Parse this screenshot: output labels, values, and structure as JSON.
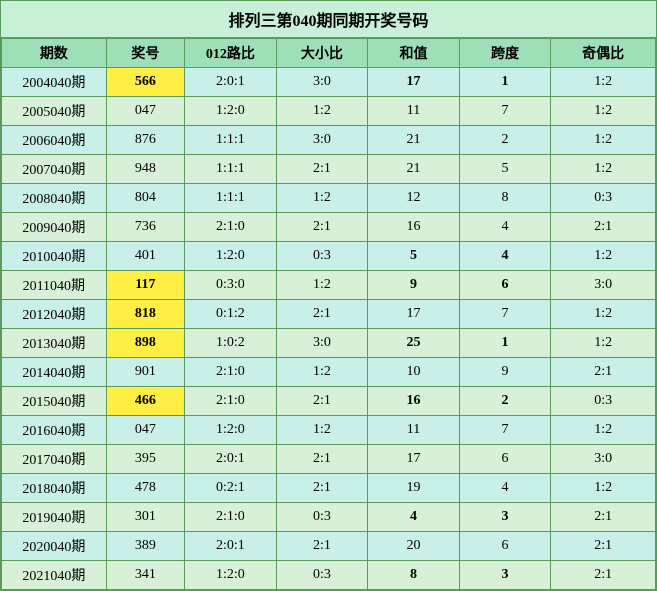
{
  "title": "排列三第040期同期开奖号码",
  "columns": [
    "期数",
    "奖号",
    "012路比",
    "大小比",
    "和值",
    "跨度",
    "奇偶比"
  ],
  "col_widths": [
    "16%",
    "12%",
    "14%",
    "14%",
    "14%",
    "14%",
    "16%"
  ],
  "colors": {
    "border": "#5a9a5a",
    "header_bg": "#9de0b8",
    "row_alt_bg": "#c8f0e8",
    "row_reg_bg": "#d8f0d8",
    "highlight_bg": "#ffee44",
    "title_bg": "#c8f0d8"
  },
  "rows": [
    {
      "period": "2004040期",
      "num": "566",
      "ratio012": "2:0:1",
      "daxiao": "3:0",
      "sum": "17",
      "span": "1",
      "oddeven": "1:2",
      "hl": true,
      "alt": true,
      "bold_cols": [
        4,
        5
      ]
    },
    {
      "period": "2005040期",
      "num": "047",
      "ratio012": "1:2:0",
      "daxiao": "1:2",
      "sum": "11",
      "span": "7",
      "oddeven": "1:2",
      "hl": false,
      "alt": false,
      "bold_cols": []
    },
    {
      "period": "2006040期",
      "num": "876",
      "ratio012": "1:1:1",
      "daxiao": "3:0",
      "sum": "21",
      "span": "2",
      "oddeven": "1:2",
      "hl": false,
      "alt": true,
      "bold_cols": []
    },
    {
      "period": "2007040期",
      "num": "948",
      "ratio012": "1:1:1",
      "daxiao": "2:1",
      "sum": "21",
      "span": "5",
      "oddeven": "1:2",
      "hl": false,
      "alt": false,
      "bold_cols": []
    },
    {
      "period": "2008040期",
      "num": "804",
      "ratio012": "1:1:1",
      "daxiao": "1:2",
      "sum": "12",
      "span": "8",
      "oddeven": "0:3",
      "hl": false,
      "alt": true,
      "bold_cols": []
    },
    {
      "period": "2009040期",
      "num": "736",
      "ratio012": "2:1:0",
      "daxiao": "2:1",
      "sum": "16",
      "span": "4",
      "oddeven": "2:1",
      "hl": false,
      "alt": false,
      "bold_cols": []
    },
    {
      "period": "2010040期",
      "num": "401",
      "ratio012": "1:2:0",
      "daxiao": "0:3",
      "sum": "5",
      "span": "4",
      "oddeven": "1:2",
      "hl": false,
      "alt": true,
      "bold_cols": [
        4,
        5
      ]
    },
    {
      "period": "2011040期",
      "num": "117",
      "ratio012": "0:3:0",
      "daxiao": "1:2",
      "sum": "9",
      "span": "6",
      "oddeven": "3:0",
      "hl": true,
      "alt": false,
      "bold_cols": [
        4,
        5
      ]
    },
    {
      "period": "2012040期",
      "num": "818",
      "ratio012": "0:1:2",
      "daxiao": "2:1",
      "sum": "17",
      "span": "7",
      "oddeven": "1:2",
      "hl": true,
      "alt": true,
      "bold_cols": []
    },
    {
      "period": "2013040期",
      "num": "898",
      "ratio012": "1:0:2",
      "daxiao": "3:0",
      "sum": "25",
      "span": "1",
      "oddeven": "1:2",
      "hl": true,
      "alt": false,
      "bold_cols": [
        4,
        5
      ]
    },
    {
      "period": "2014040期",
      "num": "901",
      "ratio012": "2:1:0",
      "daxiao": "1:2",
      "sum": "10",
      "span": "9",
      "oddeven": "2:1",
      "hl": false,
      "alt": true,
      "bold_cols": []
    },
    {
      "period": "2015040期",
      "num": "466",
      "ratio012": "2:1:0",
      "daxiao": "2:1",
      "sum": "16",
      "span": "2",
      "oddeven": "0:3",
      "hl": true,
      "alt": false,
      "bold_cols": [
        4,
        5
      ]
    },
    {
      "period": "2016040期",
      "num": "047",
      "ratio012": "1:2:0",
      "daxiao": "1:2",
      "sum": "11",
      "span": "7",
      "oddeven": "1:2",
      "hl": false,
      "alt": true,
      "bold_cols": []
    },
    {
      "period": "2017040期",
      "num": "395",
      "ratio012": "2:0:1",
      "daxiao": "2:1",
      "sum": "17",
      "span": "6",
      "oddeven": "3:0",
      "hl": false,
      "alt": false,
      "bold_cols": []
    },
    {
      "period": "2018040期",
      "num": "478",
      "ratio012": "0:2:1",
      "daxiao": "2:1",
      "sum": "19",
      "span": "4",
      "oddeven": "1:2",
      "hl": false,
      "alt": true,
      "bold_cols": []
    },
    {
      "period": "2019040期",
      "num": "301",
      "ratio012": "2:1:0",
      "daxiao": "0:3",
      "sum": "4",
      "span": "3",
      "oddeven": "2:1",
      "hl": false,
      "alt": false,
      "bold_cols": [
        4,
        5
      ]
    },
    {
      "period": "2020040期",
      "num": "389",
      "ratio012": "2:0:1",
      "daxiao": "2:1",
      "sum": "20",
      "span": "6",
      "oddeven": "2:1",
      "hl": false,
      "alt": true,
      "bold_cols": []
    },
    {
      "period": "2021040期",
      "num": "341",
      "ratio012": "1:2:0",
      "daxiao": "0:3",
      "sum": "8",
      "span": "3",
      "oddeven": "2:1",
      "hl": false,
      "alt": false,
      "bold_cols": [
        4,
        5
      ]
    }
  ]
}
